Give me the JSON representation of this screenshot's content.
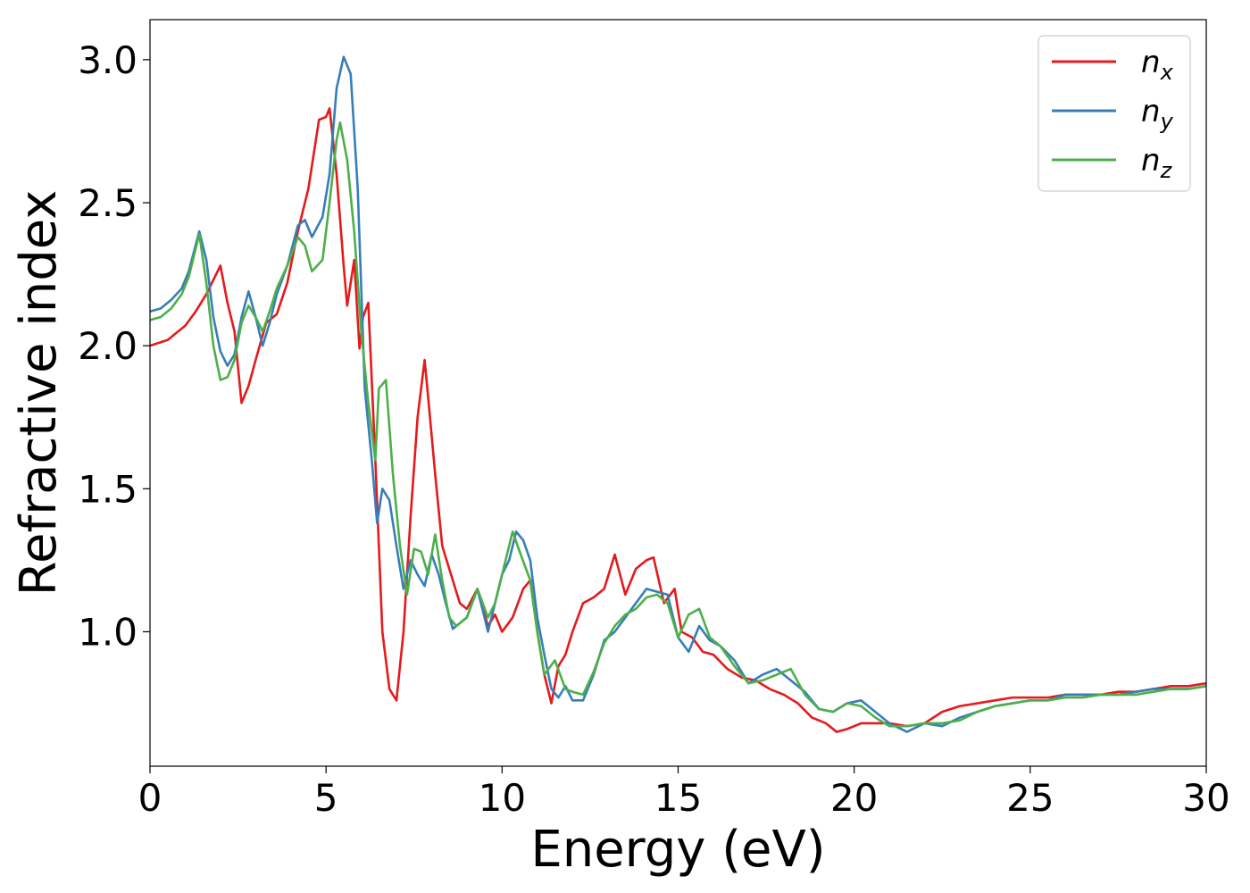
{
  "chart_data": {
    "type": "line",
    "title": "",
    "xlabel": "Energy (eV)",
    "ylabel": "Refractive index",
    "xlim": [
      0,
      30
    ],
    "ylim": [
      0.53,
      3.14
    ],
    "xticks": [
      0,
      5,
      10,
      15,
      20,
      25,
      30
    ],
    "xtick_labels": [
      "0",
      "5",
      "10",
      "15",
      "20",
      "25",
      "30"
    ],
    "yticks": [
      1.0,
      1.5,
      2.0,
      2.5,
      3.0
    ],
    "ytick_labels": [
      "1.0",
      "1.5",
      "2.0",
      "2.5",
      "3.0"
    ],
    "grid": false,
    "legend_position": "top-right",
    "series": [
      {
        "name": "n",
        "subscript": "x",
        "color": "#e41a1c",
        "x": [
          0,
          0.5,
          1.0,
          1.3,
          1.6,
          2.0,
          2.2,
          2.4,
          2.6,
          2.8,
          3.0,
          3.3,
          3.6,
          3.9,
          4.2,
          4.5,
          4.8,
          5.0,
          5.1,
          5.3,
          5.5,
          5.6,
          5.8,
          5.95,
          6.05,
          6.2,
          6.4,
          6.6,
          6.8,
          7.0,
          7.2,
          7.4,
          7.6,
          7.8,
          7.9,
          8.1,
          8.3,
          8.5,
          8.8,
          9.0,
          9.3,
          9.6,
          9.8,
          10.0,
          10.3,
          10.6,
          10.8,
          11.0,
          11.2,
          11.4,
          11.6,
          11.8,
          12.0,
          12.3,
          12.6,
          12.9,
          13.2,
          13.5,
          13.8,
          14.1,
          14.3,
          14.6,
          14.9,
          15.1,
          15.4,
          15.7,
          16.0,
          16.4,
          16.8,
          17.2,
          17.6,
          18.0,
          18.4,
          18.8,
          19.2,
          19.5,
          19.8,
          20.2,
          20.6,
          21.0,
          21.5,
          22.0,
          22.5,
          23.0,
          23.5,
          24.0,
          24.5,
          25.0,
          25.5,
          26.0,
          26.5,
          27.0,
          27.5,
          28.0,
          28.5,
          29.0,
          29.5,
          30.0
        ],
        "y": [
          2.0,
          2.02,
          2.07,
          2.12,
          2.18,
          2.28,
          2.15,
          2.05,
          1.8,
          1.86,
          1.95,
          2.08,
          2.11,
          2.22,
          2.4,
          2.55,
          2.79,
          2.8,
          2.83,
          2.6,
          2.28,
          2.14,
          2.3,
          1.99,
          2.1,
          2.15,
          1.6,
          1.0,
          0.8,
          0.76,
          1.0,
          1.4,
          1.75,
          1.95,
          1.82,
          1.55,
          1.3,
          1.22,
          1.1,
          1.08,
          1.15,
          1.02,
          1.06,
          1.0,
          1.05,
          1.15,
          1.18,
          1.0,
          0.85,
          0.75,
          0.88,
          0.92,
          1.0,
          1.1,
          1.12,
          1.15,
          1.27,
          1.13,
          1.22,
          1.25,
          1.26,
          1.1,
          1.15,
          1.0,
          0.98,
          0.93,
          0.92,
          0.87,
          0.84,
          0.83,
          0.8,
          0.78,
          0.75,
          0.7,
          0.68,
          0.65,
          0.66,
          0.68,
          0.68,
          0.68,
          0.67,
          0.68,
          0.72,
          0.74,
          0.75,
          0.76,
          0.77,
          0.77,
          0.77,
          0.78,
          0.78,
          0.78,
          0.79,
          0.79,
          0.8,
          0.81,
          0.81,
          0.82
        ]
      },
      {
        "name": "n",
        "subscript": "y",
        "color": "#377eb8",
        "x": [
          0,
          0.3,
          0.6,
          0.9,
          1.1,
          1.4,
          1.6,
          1.8,
          2.0,
          2.2,
          2.4,
          2.6,
          2.8,
          3.0,
          3.2,
          3.4,
          3.6,
          3.9,
          4.2,
          4.4,
          4.6,
          4.9,
          5.1,
          5.3,
          5.5,
          5.7,
          5.9,
          6.1,
          6.3,
          6.45,
          6.6,
          6.8,
          7.0,
          7.2,
          7.4,
          7.6,
          7.8,
          8.0,
          8.2,
          8.4,
          8.6,
          8.8,
          9.0,
          9.3,
          9.6,
          9.8,
          10.0,
          10.2,
          10.4,
          10.6,
          10.8,
          11.0,
          11.2,
          11.4,
          11.6,
          11.8,
          12.0,
          12.3,
          12.6,
          12.9,
          13.2,
          13.5,
          13.8,
          14.1,
          14.4,
          14.7,
          15.0,
          15.3,
          15.6,
          15.9,
          16.2,
          16.6,
          17.0,
          17.4,
          17.8,
          18.2,
          18.6,
          19.0,
          19.4,
          19.8,
          20.2,
          20.6,
          21.0,
          21.5,
          22.0,
          22.5,
          23.0,
          23.5,
          24.0,
          24.5,
          25.0,
          25.5,
          26.0,
          26.5,
          27.0,
          27.5,
          28.0,
          28.5,
          29.0,
          29.5,
          30.0
        ],
        "y": [
          2.12,
          2.13,
          2.16,
          2.2,
          2.26,
          2.4,
          2.3,
          2.1,
          1.98,
          1.93,
          1.97,
          2.1,
          2.19,
          2.1,
          2.0,
          2.08,
          2.18,
          2.28,
          2.42,
          2.44,
          2.38,
          2.45,
          2.6,
          2.9,
          3.01,
          2.95,
          2.55,
          1.85,
          1.6,
          1.38,
          1.5,
          1.46,
          1.3,
          1.15,
          1.25,
          1.2,
          1.16,
          1.27,
          1.2,
          1.1,
          1.01,
          1.03,
          1.05,
          1.15,
          1.0,
          1.1,
          1.2,
          1.25,
          1.35,
          1.32,
          1.25,
          1.05,
          0.92,
          0.8,
          0.77,
          0.81,
          0.76,
          0.76,
          0.85,
          0.97,
          1.0,
          1.05,
          1.1,
          1.15,
          1.14,
          1.13,
          0.98,
          0.93,
          1.02,
          0.97,
          0.95,
          0.9,
          0.82,
          0.85,
          0.87,
          0.83,
          0.79,
          0.73,
          0.72,
          0.75,
          0.76,
          0.72,
          0.68,
          0.65,
          0.68,
          0.67,
          0.7,
          0.72,
          0.74,
          0.75,
          0.76,
          0.76,
          0.78,
          0.78,
          0.78,
          0.78,
          0.79,
          0.8,
          0.8,
          0.8,
          0.81
        ]
      },
      {
        "name": "n",
        "subscript": "z",
        "color": "#4daf4a",
        "x": [
          0,
          0.3,
          0.6,
          0.9,
          1.1,
          1.4,
          1.6,
          1.8,
          2.0,
          2.2,
          2.4,
          2.6,
          2.8,
          3.0,
          3.2,
          3.4,
          3.6,
          3.9,
          4.2,
          4.4,
          4.6,
          4.9,
          5.1,
          5.3,
          5.4,
          5.6,
          5.8,
          6.0,
          6.2,
          6.4,
          6.5,
          6.7,
          6.9,
          7.1,
          7.3,
          7.5,
          7.7,
          7.9,
          8.1,
          8.3,
          8.5,
          8.7,
          9.0,
          9.3,
          9.6,
          9.8,
          10.0,
          10.3,
          10.5,
          10.8,
          11.0,
          11.2,
          11.5,
          11.8,
          12.0,
          12.3,
          12.6,
          12.9,
          13.2,
          13.5,
          13.8,
          14.1,
          14.4,
          14.7,
          15.0,
          15.3,
          15.6,
          15.9,
          16.2,
          16.6,
          17.0,
          17.4,
          17.8,
          18.2,
          18.6,
          19.0,
          19.4,
          19.8,
          20.2,
          20.6,
          21.0,
          21.5,
          22.0,
          22.5,
          23.0,
          23.5,
          24.0,
          24.5,
          25.0,
          25.5,
          26.0,
          26.5,
          27.0,
          27.5,
          28.0,
          28.5,
          29.0,
          29.5,
          30.0
        ],
        "y": [
          2.09,
          2.1,
          2.13,
          2.18,
          2.24,
          2.39,
          2.22,
          2.0,
          1.88,
          1.89,
          1.95,
          2.08,
          2.14,
          2.1,
          2.05,
          2.12,
          2.2,
          2.28,
          2.38,
          2.35,
          2.26,
          2.3,
          2.5,
          2.72,
          2.78,
          2.65,
          2.4,
          2.05,
          1.8,
          1.6,
          1.85,
          1.88,
          1.55,
          1.3,
          1.13,
          1.29,
          1.28,
          1.2,
          1.34,
          1.18,
          1.05,
          1.02,
          1.05,
          1.15,
          1.05,
          1.1,
          1.2,
          1.35,
          1.28,
          1.18,
          1.0,
          0.85,
          0.9,
          0.8,
          0.79,
          0.78,
          0.86,
          0.96,
          1.02,
          1.06,
          1.08,
          1.12,
          1.13,
          1.1,
          0.98,
          1.06,
          1.08,
          0.98,
          0.95,
          0.88,
          0.82,
          0.83,
          0.85,
          0.87,
          0.78,
          0.73,
          0.72,
          0.75,
          0.74,
          0.7,
          0.67,
          0.67,
          0.68,
          0.68,
          0.69,
          0.72,
          0.74,
          0.75,
          0.76,
          0.76,
          0.77,
          0.77,
          0.78,
          0.78,
          0.78,
          0.79,
          0.8,
          0.8,
          0.81
        ]
      }
    ]
  }
}
